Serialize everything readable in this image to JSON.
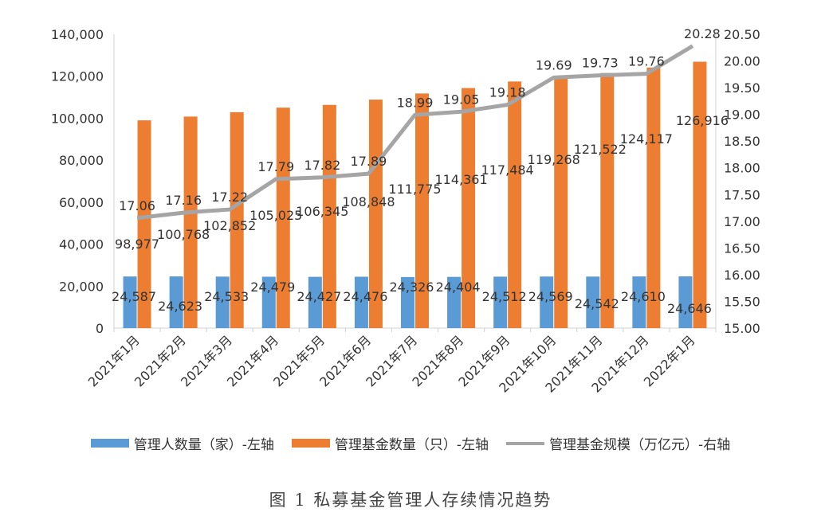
{
  "chart_data": {
    "type": "bar+line",
    "title": "",
    "categories": [
      "2021年1月",
      "2021年2月",
      "2021年3月",
      "2021年4月",
      "2021年5月",
      "2021年6月",
      "2021年7月",
      "2021年8月",
      "2021年9月",
      "2021年10月",
      "2021年11月",
      "2021年12月",
      "2022年1月"
    ],
    "series": [
      {
        "name": "管理人数量（家）-左轴",
        "type": "bar",
        "axis": "left",
        "color": "#5B9BD5",
        "values": [
          24587,
          24623,
          24533,
          24479,
          24427,
          24476,
          24326,
          24404,
          24512,
          24569,
          24542,
          24610,
          24646
        ],
        "labels": [
          "24,587",
          "24,623",
          "24,533",
          "24,479",
          "24,427",
          "24,476",
          "24,326",
          "24,404",
          "24,512",
          "24,569",
          "24,542",
          "24,610",
          "24,646"
        ]
      },
      {
        "name": "管理基金数量（只）-左轴",
        "type": "bar",
        "axis": "left",
        "color": "#ED7D31",
        "values": [
          98977,
          100768,
          102852,
          105025,
          106345,
          108848,
          111775,
          114361,
          117484,
          119268,
          121522,
          124117,
          126916
        ],
        "labels": [
          "98,977",
          "100,768",
          "102,852",
          "105,025",
          "106,345",
          "108,848",
          "111,775",
          "114,361",
          "117,484",
          "119,268",
          "121,522",
          "124,117",
          "126,916"
        ]
      },
      {
        "name": "管理基金规模（万亿元）-右轴",
        "type": "line",
        "axis": "right",
        "color": "#A5A5A5",
        "values": [
          17.06,
          17.16,
          17.22,
          17.79,
          17.82,
          17.89,
          18.99,
          19.05,
          19.18,
          19.69,
          19.73,
          19.76,
          20.28
        ],
        "labels": [
          "17.06",
          "17.16",
          "17.22",
          "17.79",
          "17.82",
          "17.89",
          "18.99",
          "19.05",
          "19.18",
          "19.69",
          "19.73",
          "19.76",
          "20.28"
        ]
      }
    ],
    "left_axis": {
      "range": [
        0,
        140000
      ],
      "ticks": [
        "0",
        "20,000",
        "40,000",
        "60,000",
        "80,000",
        "100,000",
        "120,000",
        "140,000"
      ]
    },
    "right_axis": {
      "range": [
        15,
        20.5
      ],
      "ticks": [
        "15.00",
        "15.50",
        "16.00",
        "16.50",
        "17.00",
        "17.50",
        "18.00",
        "18.50",
        "19.00",
        "19.50",
        "20.00",
        "20.50"
      ]
    },
    "grid": false,
    "legend": "bottom"
  },
  "caption": "图 1  私募基金管理人存续情况趋势"
}
